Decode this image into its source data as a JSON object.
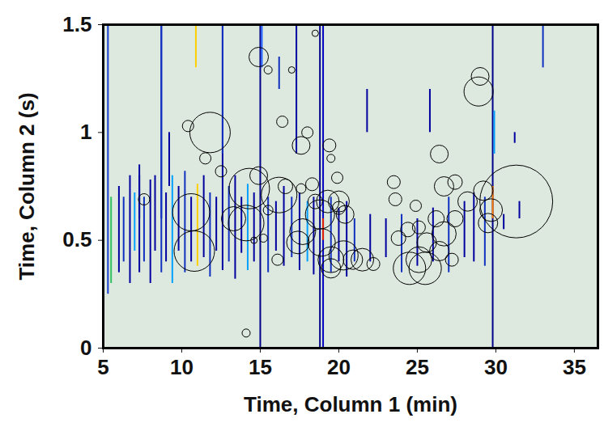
{
  "chart_data": {
    "type": "scatter",
    "xlabel": "Time, Column 1 (min)",
    "ylabel": "Time, Column 2 (s)",
    "xlim": [
      5,
      36.5
    ],
    "ylim": [
      0,
      1.5
    ],
    "xticks": [
      5,
      10,
      15,
      20,
      25,
      30,
      35
    ],
    "yticks": [
      0,
      0.5,
      1,
      1.5
    ],
    "marker": "circle",
    "color": "#000000",
    "bubbles": {
      "x": [
        14.9,
        15.5,
        18.5,
        17.0,
        11.8,
        10.4,
        11.5,
        12.5,
        10.6,
        10.8,
        7.6,
        13.3,
        14.1,
        14.3,
        14.9,
        14.6,
        15.2,
        14.1,
        15.5,
        16.1,
        16.4,
        16.6,
        16.2,
        17.6,
        18.0,
        17.6,
        18.3,
        18.5,
        17.7,
        17.4,
        18.8,
        18.9,
        19.3,
        20.0,
        20.4,
        19.4,
        19.5,
        19.9,
        20.0,
        19.5,
        20.3,
        20.9,
        21.5,
        22.2,
        19.5,
        23.8,
        23.5,
        23.6,
        24.4,
        24.5,
        25.1,
        25.6,
        25.5,
        26.4,
        26.7,
        27.2,
        27.4,
        28.2,
        26.4,
        26.7,
        27.4,
        26.2,
        29.2,
        29.7,
        29.5,
        31.3,
        29.0,
        28.9,
        24.9,
        25.1
      ],
      "y": [
        1.35,
        1.29,
        1.46,
        1.29,
        1.0,
        1.03,
        0.88,
        0.82,
        0.63,
        0.45,
        0.69,
        0.6,
        0.58,
        0.74,
        0.8,
        0.5,
        0.51,
        0.07,
        0.64,
        0.41,
        1.05,
        0.75,
        0.71,
        0.94,
        1.0,
        0.74,
        0.76,
        0.68,
        0.54,
        0.49,
        0.62,
        0.49,
        0.68,
        0.68,
        0.62,
        0.94,
        0.88,
        0.79,
        0.65,
        0.41,
        0.43,
        0.41,
        0.41,
        0.39,
        0.37,
        0.51,
        0.77,
        0.69,
        0.55,
        0.37,
        0.41,
        0.49,
        0.37,
        0.45,
        0.53,
        0.41,
        0.6,
        0.68,
        0.9,
        0.75,
        0.77,
        0.6,
        0.73,
        0.64,
        0.58,
        0.68,
        1.26,
        1.19,
        0.66,
        0.56
      ],
      "sizes": [
        12,
        5,
        4,
        4,
        25,
        7,
        7,
        7,
        23,
        25,
        7,
        15,
        22,
        25,
        11,
        4,
        5,
        5,
        6,
        7,
        7,
        9,
        22,
        11,
        7,
        6,
        8,
        9,
        16,
        14,
        18,
        17,
        14,
        13,
        11,
        8,
        5,
        7,
        8,
        16,
        18,
        12,
        14,
        8,
        12,
        9,
        8,
        8,
        9,
        20,
        16,
        12,
        20,
        12,
        15,
        8,
        10,
        12,
        11,
        12,
        9,
        10,
        12,
        14,
        12,
        45,
        11,
        18,
        7,
        8
      ]
    },
    "peaks": {
      "x": [
        5.3,
        5.5,
        15.0,
        15.1,
        18.8,
        19.0,
        19.0,
        29.8,
        29.8,
        29.9,
        6.0,
        6.3,
        6.7,
        7.0,
        7.3,
        7.6,
        8.0,
        8.3,
        8.7,
        9.0,
        9.4,
        9.8,
        10.2,
        10.6,
        11.0,
        11.4,
        11.8,
        12.2,
        12.6,
        13.0,
        13.4,
        13.8,
        14.2,
        14.6,
        15.5,
        16.0,
        16.5,
        17.0,
        17.5,
        18.0,
        18.4,
        19.5,
        20.0,
        20.5,
        21.0,
        22.0,
        23.0,
        24.0,
        25.0,
        26.0,
        27.0,
        28.0,
        28.6,
        29.3,
        30.5,
        31.5,
        8.7,
        10.9,
        12.6,
        17.3,
        21.8,
        25.8,
        33.0,
        31.2,
        7.3,
        9.2,
        16.2
      ],
      "y1": [
        0.25,
        0.3,
        0,
        1.3,
        0,
        0,
        0.5,
        0,
        0.6,
        0.9,
        0.35,
        0.4,
        0.3,
        0.45,
        0.35,
        0.4,
        0.3,
        0.45,
        0.35,
        0.4,
        0.3,
        0.45,
        0.35,
        0.4,
        0.38,
        0.42,
        0.33,
        0.45,
        0.36,
        0.4,
        0.32,
        0.44,
        0.36,
        0.4,
        0.35,
        0.45,
        0.38,
        0.42,
        0.36,
        0.4,
        0.34,
        0.35,
        0.4,
        0.33,
        0.4,
        0.4,
        0.42,
        0.35,
        0.38,
        0.4,
        0.35,
        0.42,
        0.4,
        0.38,
        0.55,
        0.6,
        0.6,
        1.3,
        0.9,
        0.9,
        1.0,
        1.0,
        1.3,
        0.95,
        0.6,
        0.75,
        1.2
      ],
      "y2": [
        1.5,
        0.7,
        1.5,
        1.5,
        1.5,
        1.5,
        0.6,
        1.5,
        0.75,
        1.1,
        0.75,
        0.7,
        0.8,
        0.72,
        0.85,
        0.7,
        0.78,
        0.8,
        1.5,
        0.72,
        0.8,
        0.75,
        0.82,
        0.7,
        0.76,
        0.8,
        0.72,
        0.7,
        1.5,
        0.75,
        0.8,
        0.7,
        0.76,
        0.72,
        0.7,
        0.68,
        0.75,
        0.7,
        0.72,
        0.68,
        0.7,
        0.7,
        0.65,
        0.68,
        0.6,
        0.62,
        0.6,
        0.62,
        0.6,
        0.65,
        0.7,
        0.68,
        0.72,
        0.7,
        0.62,
        0.68,
        1.5,
        1.5,
        1.5,
        1.5,
        1.2,
        1.2,
        1.5,
        1.0,
        0.8,
        1.0,
        1.35
      ],
      "colors": [
        "#1a3fd0",
        "#30c060",
        "#00008b",
        "#2060ff",
        "#00008b",
        "#0000c0",
        "#e02000",
        "#00008b",
        "#ff8000",
        "#00a0ff",
        "#0000a0",
        "#1030c0",
        "#0000a0",
        "#00a0ff",
        "#0000a0",
        "#1030c0",
        "#0000a0",
        "#0000a0",
        "#1030c0",
        "#0000a0",
        "#00a0ff",
        "#0000a0",
        "#1030c0",
        "#0000a0",
        "#ffd000",
        "#0000a0",
        "#1030c0",
        "#0000a0",
        "#0000a0",
        "#1030c0",
        "#0000a0",
        "#0000a0",
        "#00a0ff",
        "#0000a0",
        "#1030c0",
        "#0000a0",
        "#0000a0",
        "#1030c0",
        "#0000a0",
        "#00a0ff",
        "#0000a0",
        "#1030c0",
        "#0000a0",
        "#0000a0",
        "#1030c0",
        "#0000a0",
        "#0000a0",
        "#1030c0",
        "#0000a0",
        "#0000a0",
        "#1030c0",
        "#0000a0",
        "#0000a0",
        "#1030c0",
        "#0000a0",
        "#0000a0",
        "#1030c0",
        "#ffd000",
        "#1030c0",
        "#0000a0",
        "#0000a0",
        "#0000a0",
        "#1030c0",
        "#0000a0",
        "#0000a0",
        "#0000a0",
        "#1030c0"
      ]
    }
  }
}
